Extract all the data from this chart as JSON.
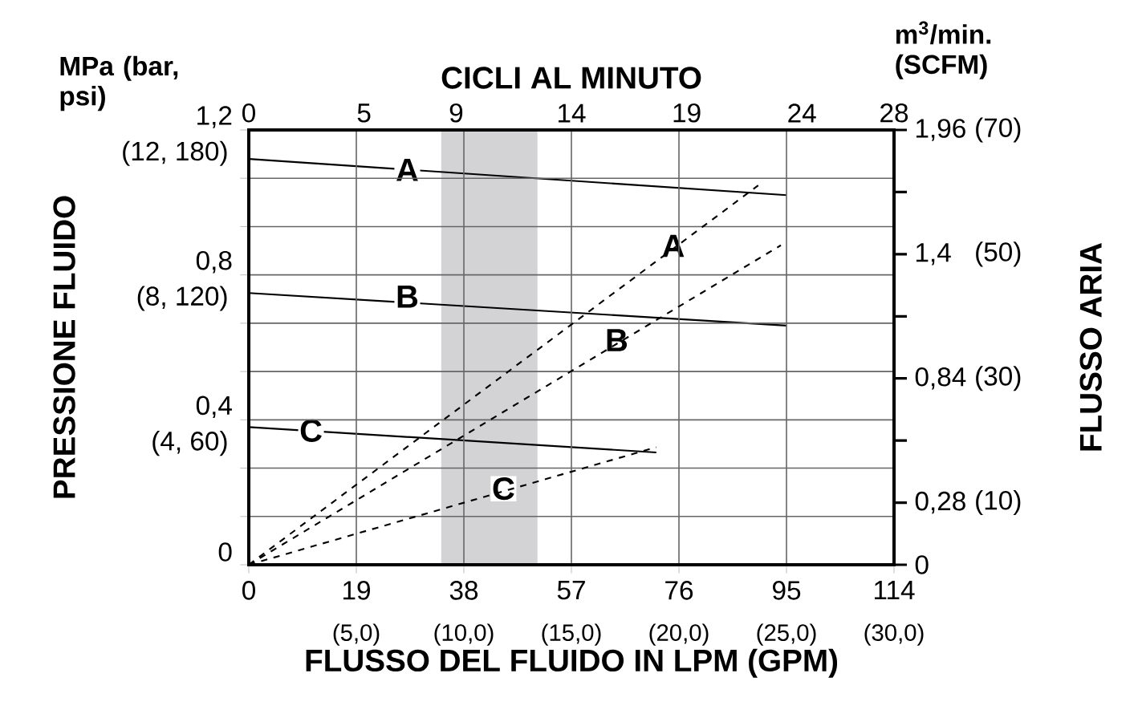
{
  "chart_data": {
    "type": "line",
    "xlabel": "FLUSSO DEL FLUIDO IN LPM (GPM)",
    "ylabel": "PRESSIONE FLUIDO",
    "y2label": "FLUSSO ARIA",
    "x2label": "CICLI AL MINUTO",
    "xlim": [
      0,
      114
    ],
    "xticks": [
      0,
      19,
      38,
      57,
      76,
      95,
      114
    ],
    "x2lim": [
      0,
      28
    ],
    "x2ticks": [
      0,
      5,
      9,
      14,
      19,
      24,
      28
    ],
    "ylim": [
      0,
      1.2
    ],
    "yticks": [
      0,
      {
        "value": 0.1333,
        "label": null
      },
      {
        "value": 0.2667,
        "label": null
      },
      {
        "value": 0.4,
        "label": "0,4"
      },
      {
        "value": 0.5333,
        "label": null
      },
      {
        "value": 0.6667,
        "label": null
      },
      {
        "value": 0.8,
        "label": "0,8"
      },
      {
        "value": 0.9333,
        "label": null
      },
      {
        "value": 1.0667,
        "label": null
      },
      {
        "value": 1.2,
        "label": "1,2"
      }
    ],
    "y2lim": [
      0,
      1.96
    ],
    "y2ticks": [
      0,
      {
        "value": 0.28,
        "label": "0,28"
      },
      {
        "value": 0.56,
        "label": null
      },
      {
        "value": 0.84,
        "label": "0,84"
      },
      {
        "value": 1.12,
        "label": null
      },
      {
        "value": 1.4,
        "label": "1,4"
      },
      {
        "value": 1.68,
        "label": null
      },
      {
        "value": 1.96,
        "label": "1,96"
      }
    ],
    "y3lim": [
      0,
      70
    ],
    "y3ticks": [
      {
        "value": 10,
        "label": "(10)"
      },
      {
        "value": 30,
        "label": "(30)"
      },
      {
        "value": 50,
        "label": "(50)"
      },
      {
        "value": 70,
        "label": "(70)"
      }
    ],
    "grid": true,
    "marker": "none",
    "bands": [
      {
        "axis": "x",
        "from": 34,
        "to": 51,
        "color": "#d3d3d5"
      }
    ],
    "series": [
      {
        "color": "#000000",
        "line_style": "solid",
        "x": [
          0,
          95
        ],
        "values": [
          1.12,
          1.02
        ]
      },
      {
        "color": "#000000",
        "line_style": "solid",
        "x": [
          0,
          95
        ],
        "values": [
          0.75,
          0.66
        ]
      },
      {
        "color": "#000000",
        "line_style": "solid",
        "x": [
          0,
          72
        ],
        "values": [
          0.38,
          0.31
        ]
      },
      {
        "color": "#000000",
        "line_style": "dashed",
        "axis": "y2",
        "x": [
          0,
          90
        ],
        "values": [
          0,
          1.71
        ]
      },
      {
        "color": "#000000",
        "line_style": "dashed",
        "axis": "y2",
        "x": [
          0,
          94
        ],
        "values": [
          0,
          1.44
        ]
      },
      {
        "color": "#000000",
        "line_style": "dashed",
        "axis": "y2",
        "x": [
          0,
          72
        ],
        "values": [
          0,
          0.53
        ]
      }
    ],
    "annotations": [
      "MPa (bar, psi)",
      "m$^{3}$/min. (SCFM)",
      {
        "text": "A",
        "x": 28,
        "y": 1.09
      },
      {
        "text": "B",
        "x": 28,
        "y": 0.74
      },
      {
        "text": "C",
        "x": 11,
        "y": 0.37
      },
      {
        "text": "A",
        "x": 75,
        "y": 0.88
      },
      {
        "text": "B",
        "x": 65,
        "y": 0.62
      },
      {
        "text": "C",
        "x": 45,
        "y": 0.21
      },
      "(4, 60)",
      "(8, 120)",
      "(12, 180)",
      "(5,0)",
      "(10,0)",
      "(15,0)",
      "(20,0)",
      "(25,0)",
      "(30,0)"
    ]
  }
}
